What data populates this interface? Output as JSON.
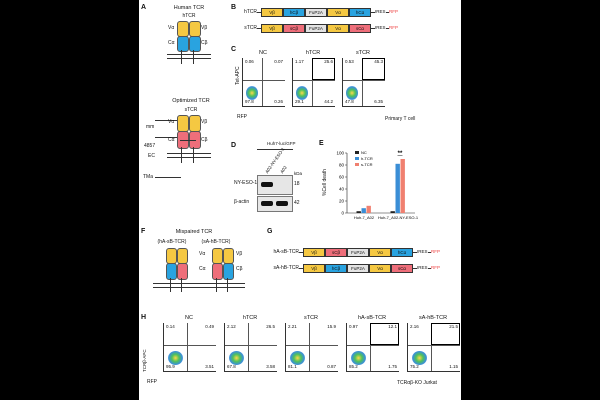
{
  "panels": {
    "A": {
      "letter": "A",
      "title1": "Human TCR",
      "tcr1_label": "hTCR",
      "title2": "Optimized TCR",
      "tcr2_label": "sTCR",
      "va": "Vα",
      "vb": "Vβ",
      "ca": "Cα",
      "cb": "Cβ",
      "mm": "mm",
      "n4857": "4857",
      "ec": "EC",
      "tma": "TMa"
    },
    "B": {
      "letter": "B",
      "rows": [
        {
          "name": "hTCR",
          "segments": [
            "Vβ",
            "hCβ",
            "FuP2A",
            "Vα",
            "hCα"
          ],
          "ires": "IRES",
          "rfp": "RFP"
        },
        {
          "name": "sTCR",
          "segments": [
            "Vβ",
            "sCβ",
            "FuP2A",
            "Vα",
            "sCα"
          ],
          "ires": "IRES",
          "rfp": "RFP"
        }
      ]
    },
    "C": {
      "letter": "C",
      "yaxis": "Tet-APC",
      "xaxis": "RFP",
      "xcaption": "Primary T cell",
      "plots": [
        {
          "title": "NC",
          "q": [
            "0.06",
            "0.07",
            "97.8",
            "0.26"
          ]
        },
        {
          "title": "hTCR",
          "q": [
            "1.17",
            "25.6",
            "29.1",
            "44.2"
          ]
        },
        {
          "title": "sTCR",
          "q": [
            "0.53",
            "45.3",
            "47.8",
            "6.35"
          ]
        }
      ]
    },
    "D": {
      "letter": "D",
      "header": "Huh7-luc/GFP",
      "lane1": "A02-NY-ESO-1",
      "lane2": "A02",
      "kda": "kDa",
      "row1": "NY-ESO-1",
      "row1_kda": "18",
      "row2": "β-actin",
      "row2_kda": "42"
    },
    "E": {
      "letter": "E",
      "ylabel": "%Cell death",
      "significance": "**",
      "legend": [
        "NC",
        "h-TCR",
        "s-TCR"
      ]
    },
    "F": {
      "letter": "F",
      "title": "Mispaired TCR",
      "left": "(hA-sB-TCR)",
      "right": "(sA-hB-TCR)",
      "va": "Vα",
      "vb": "Vβ",
      "ca": "Cα",
      "cb": "Cβ"
    },
    "G": {
      "letter": "G",
      "rows": [
        {
          "name": "hA-sB-TCR",
          "segments": [
            "Vβ",
            "sCβ",
            "FuP2A",
            "Vα",
            "hCα"
          ],
          "ires": "IRES",
          "rfp": "RFP"
        },
        {
          "name": "sA-hB-TCR",
          "segments": [
            "Vβ",
            "hCβ",
            "FuP2A",
            "Vα",
            "sCα"
          ],
          "ires": "IRES",
          "rfp": "RFP"
        }
      ]
    },
    "H": {
      "letter": "H",
      "yaxis": "TCRβ-APC",
      "xaxis": "RFP",
      "xcaption": "TCRαβ-KO Jurkat",
      "plots": [
        {
          "title": "NC",
          "q": [
            "0.14",
            "0.49",
            "95.9",
            "3.51"
          ]
        },
        {
          "title": "hTCR",
          "q": [
            "2.12",
            "26.5",
            "67.8",
            "3.58"
          ]
        },
        {
          "title": "sTCR",
          "q": [
            "2.21",
            "15.9",
            "81.1",
            "0.87"
          ]
        },
        {
          "title": "hA-sB-TCR",
          "q": [
            "0.97",
            "12.1",
            "85.2",
            "1.75"
          ]
        },
        {
          "title": "sA-hB-TCR",
          "q": [
            "2.16",
            "21.5",
            "75.2",
            "1.15"
          ]
        }
      ]
    }
  },
  "chart_data": {
    "type": "bar",
    "categories": [
      "Huh-7_A02",
      "Huh-7_A02-NY-ESO-1"
    ],
    "series": [
      {
        "name": "NC",
        "values": [
          3,
          3
        ],
        "color": "#222222"
      },
      {
        "name": "h-TCR",
        "values": [
          8,
          82
        ],
        "color": "#3a8ed6"
      },
      {
        "name": "s-TCR",
        "values": [
          12,
          90
        ],
        "color": "#f08070"
      }
    ],
    "ylabel": "%Cell death",
    "ylim": [
      0,
      100
    ],
    "yticks": [
      0,
      20,
      40,
      60,
      80,
      100
    ]
  }
}
